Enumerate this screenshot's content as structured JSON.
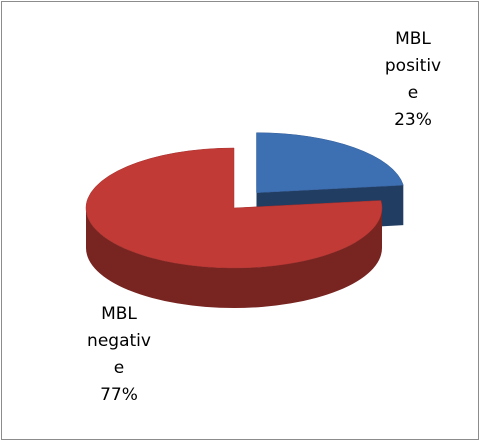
{
  "chart_data": {
    "type": "pie",
    "categories": [
      "MBL positive",
      "MBL negative"
    ],
    "values": [
      23,
      77
    ],
    "value_labels": [
      "23%",
      "77%"
    ],
    "colors": [
      "#3d6fb3",
      "#c23a36"
    ],
    "explode": [
      true,
      false
    ]
  }
}
